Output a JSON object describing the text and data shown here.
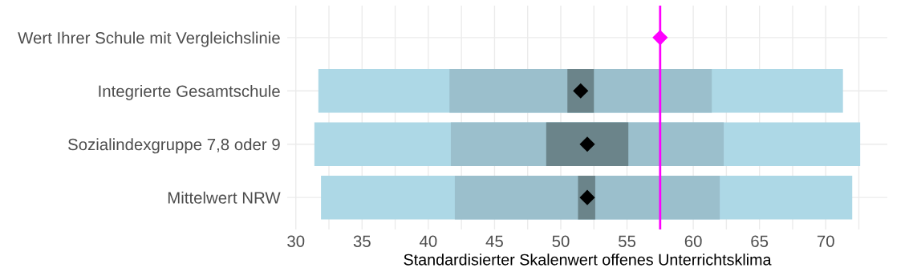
{
  "chart_data": {
    "type": "bar",
    "orientation": "horizontal",
    "xlabel": "Standardisierter Skalenwert offenes Unterrichtsklima",
    "categories": [
      "Wert Ihrer Schule mit Vergleichslinie",
      "Integrierte Gesamtschule",
      "Sozialindexgruppe 7,8 oder 9",
      "Mittelwert NRW"
    ],
    "series": [
      {
        "color": "#add8e6",
        "base": [
          null,
          31.7,
          31.4,
          31.9
        ],
        "values": [
          null,
          39.6,
          41.2,
          40.1
        ]
      },
      {
        "color": "#9bbfcc",
        "base": [
          null,
          41.6,
          41.7,
          42.0
        ],
        "values": [
          null,
          19.8,
          20.6,
          20.0
        ]
      },
      {
        "color": "#6b848a",
        "base": [
          null,
          50.5,
          48.9,
          51.3
        ],
        "values": [
          null,
          2.0,
          6.2,
          1.3
        ]
      },
      {
        "type": "scatter",
        "color": "#000000",
        "marker": "diamond",
        "values": [
          null,
          51.5,
          52.0,
          52.0
        ]
      },
      {
        "type": "scatter",
        "color": "#ff00ff",
        "marker": "diamond",
        "values": [
          57.5,
          null,
          null,
          null
        ]
      }
    ],
    "ref_lines": [
      {
        "axis": "x",
        "value": 57.5,
        "color": "#ff00ff"
      }
    ],
    "xlim": [
      29.35,
      74.65
    ],
    "xticks": [
      30,
      {
        "value": 32.5,
        "label": null
      },
      35,
      {
        "value": 37.5,
        "label": null
      },
      40,
      {
        "value": 42.5,
        "label": null
      },
      45,
      {
        "value": 47.5,
        "label": null
      },
      50,
      {
        "value": 52.5,
        "label": null
      },
      55,
      {
        "value": 57.5,
        "label": null
      },
      60,
      {
        "value": 62.5,
        "label": null
      },
      65,
      {
        "value": 67.5,
        "label": null
      },
      70,
      {
        "value": 72.5,
        "label": null
      }
    ],
    "grid": true
  }
}
